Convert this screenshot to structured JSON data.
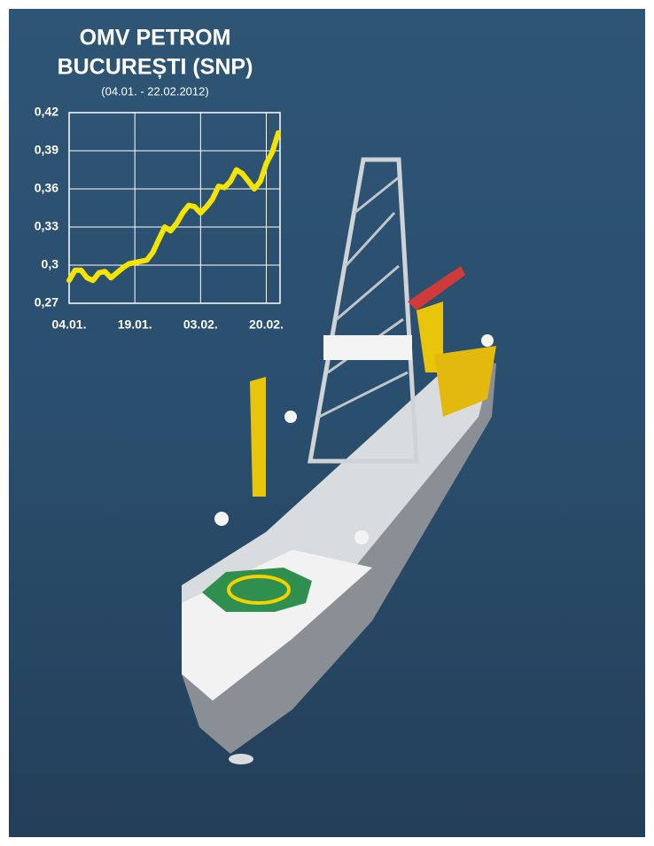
{
  "chart_data": {
    "type": "line",
    "title": [
      "OMV PETROM",
      "BUCUREȘTI (SNP)"
    ],
    "subtitle": "(04.01. - 22.02.2012)",
    "categories": [
      "04.01.",
      null,
      null,
      null,
      null,
      null,
      null,
      null,
      null,
      null,
      null,
      "19.01.",
      null,
      null,
      null,
      null,
      null,
      null,
      null,
      null,
      null,
      null,
      "03.02.",
      null,
      null,
      null,
      null,
      null,
      null,
      null,
      null,
      null,
      null,
      "20.02.",
      null,
      null
    ],
    "values": [
      0.288,
      0.296,
      0.296,
      0.29,
      0.288,
      0.294,
      0.295,
      0.29,
      0.294,
      0.298,
      0.301,
      0.302,
      0.303,
      0.304,
      0.31,
      0.32,
      0.33,
      0.327,
      0.333,
      0.341,
      0.347,
      0.346,
      0.341,
      0.346,
      0.352,
      0.362,
      0.361,
      0.366,
      0.375,
      0.372,
      0.366,
      0.36,
      0.366,
      0.38,
      0.389,
      0.404
    ],
    "color": "#f4e400",
    "ylim": [
      0.27,
      0.42
    ],
    "yticks": [
      {
        "value": 0.27,
        "label": "0,27"
      },
      {
        "value": 0.3,
        "label": "0,3"
      },
      {
        "value": 0.33,
        "label": "0,33"
      },
      {
        "value": 0.36,
        "label": "0,36"
      },
      {
        "value": 0.39,
        "label": "0,39"
      },
      {
        "value": 0.42,
        "label": "0,42"
      }
    ],
    "grid": true
  }
}
